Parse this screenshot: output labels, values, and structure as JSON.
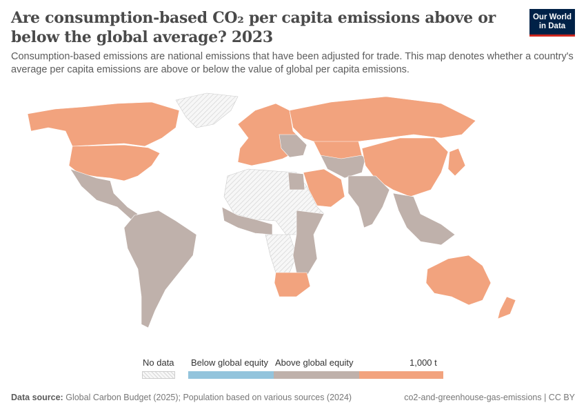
{
  "header": {
    "title": "Are consumption-based CO₂ per capita emissions above or below the global average? 2023",
    "subtitle": "Consumption-based emissions are national emissions that have been adjusted for trade. This map denotes whether a country's average per capita emissions are above or below the value of global per capita emissions.",
    "logo_text": "Our World in Data"
  },
  "legend": {
    "no_data": "No data",
    "below": "Below global equity",
    "above": "Above global equity",
    "max": "1,000 t",
    "colors": {
      "no_data": "hatched-grey",
      "below": "#93c4dc",
      "mid": "#bfb1ab",
      "above": "#f2a37e"
    }
  },
  "footer": {
    "source_label": "Data source:",
    "source_text": "Global Carbon Budget (2025); Population based on various sources (2024)",
    "slug": "co2-and-greenhouse-gas-emissions | CC BY"
  }
}
